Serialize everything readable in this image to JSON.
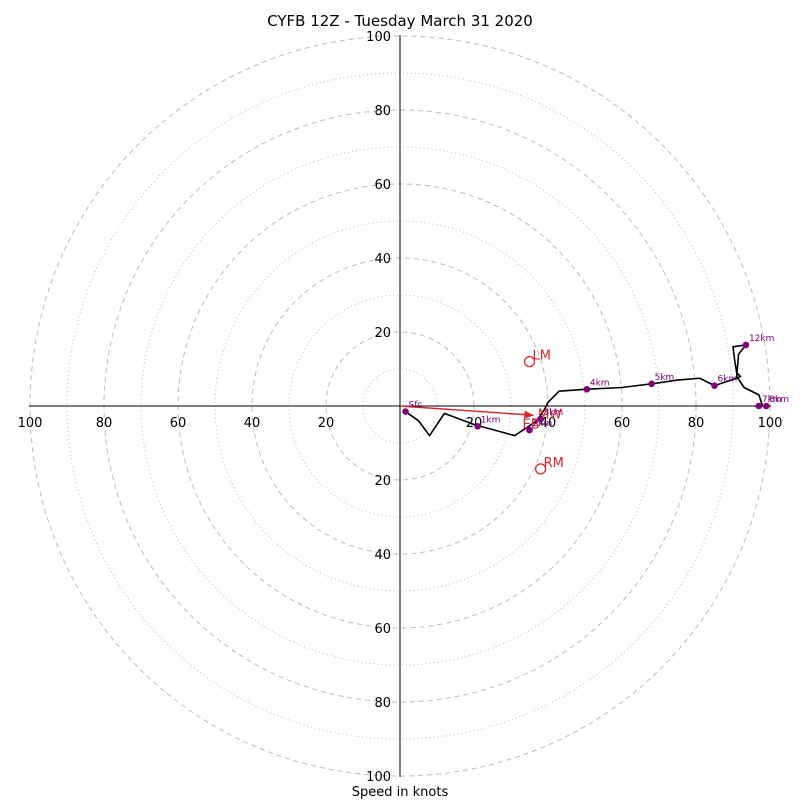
{
  "chart_data": {
    "type": "hodograph",
    "title": "CYFB 12Z - Tuesday March 31 2020",
    "xlabel": "Speed in knots",
    "rings": [
      10,
      20,
      30,
      40,
      50,
      60,
      70,
      80,
      90,
      100
    ],
    "ring_labels": [
      20,
      40,
      60,
      80,
      100
    ],
    "xlim": [
      -100,
      100
    ],
    "ylim": [
      -100,
      100
    ],
    "grid": true,
    "colors": {
      "hodograph_line": "#000000",
      "markers": "#800080",
      "motion": "#d62728",
      "grid": "#bbbbbb"
    },
    "hodograph": [
      [
        1.5,
        -1.5
      ],
      [
        5,
        -4
      ],
      [
        8,
        -8
      ],
      [
        12,
        -2
      ],
      [
        20,
        -5
      ],
      [
        31,
        -8
      ],
      [
        34,
        -6
      ],
      [
        37,
        -4
      ],
      [
        39,
        -1
      ],
      [
        40,
        1
      ],
      [
        43,
        4
      ],
      [
        50,
        4.5
      ],
      [
        60,
        5
      ],
      [
        68,
        6
      ],
      [
        75,
        7
      ],
      [
        81,
        7.5
      ],
      [
        85,
        5.5
      ],
      [
        91,
        7.5
      ],
      [
        92,
        8
      ],
      [
        91,
        9
      ],
      [
        90.5,
        12
      ],
      [
        90,
        16
      ],
      [
        93.5,
        16.5
      ],
      [
        91.5,
        14
      ],
      [
        91,
        8
      ],
      [
        93,
        5
      ],
      [
        97,
        3
      ],
      [
        98,
        0
      ],
      [
        96,
        0
      ],
      [
        99,
        0
      ]
    ],
    "levels": [
      {
        "label": "Sfc",
        "u": 1.5,
        "v": -1.5
      },
      {
        "label": "1km",
        "u": 21,
        "v": -5.5
      },
      {
        "label": "2km",
        "u": 35,
        "v": -6.5
      },
      {
        "label": "3km",
        "u": 38,
        "v": -3.5
      },
      {
        "label": "4km",
        "u": 50.5,
        "v": 4.5
      },
      {
        "label": "5km",
        "u": 68,
        "v": 6
      },
      {
        "label": "6km",
        "u": 85,
        "v": 5.5
      },
      {
        "label": "7km",
        "u": 97,
        "v": 0
      },
      {
        "label": "8km",
        "u": 99,
        "v": 0
      },
      {
        "label": "12km",
        "u": 93.5,
        "v": 16.5
      }
    ],
    "motions": [
      {
        "label": "LM",
        "u": 35,
        "v": 12
      },
      {
        "label": "RM",
        "u": 38,
        "v": -17
      },
      {
        "label": "MW",
        "u": 37,
        "v": -2.5
      },
      {
        "label": "EB",
        "u": 35,
        "v": -2.5
      }
    ],
    "mean_wind_vector": {
      "u": 36,
      "v": -2.5
    }
  }
}
